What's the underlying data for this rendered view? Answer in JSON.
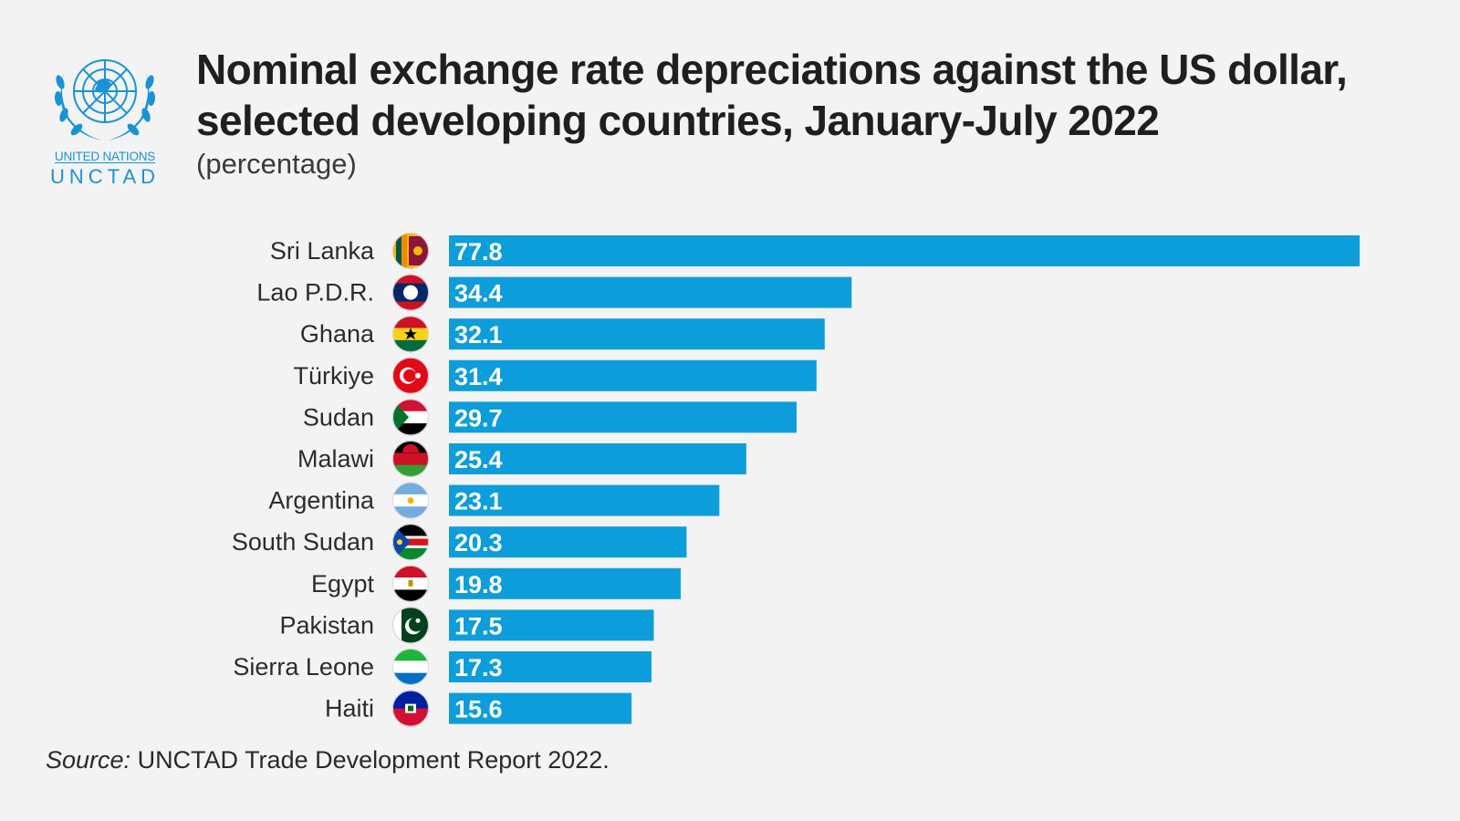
{
  "brand": {
    "org_line": "UNITED NATIONS",
    "name": "UNCTAD",
    "color": "#1a93d4"
  },
  "title_line1": "Nominal exchange rate depreciations against the US dollar,",
  "title_line2": "selected developing countries, January-July 2022",
  "subtitle": "(percentage)",
  "source_label": "Source:",
  "source_text": " UNCTAD Trade Development Report 2022.",
  "chart_data": {
    "type": "bar",
    "orientation": "horizontal",
    "categories": [
      "Sri Lanka",
      "Lao P.D.R.",
      "Ghana",
      "Türkiye",
      "Sudan",
      "Malawi",
      "Argentina",
      "South Sudan",
      "Egypt",
      "Pakistan",
      "Sierra Leone",
      "Haiti"
    ],
    "values": [
      77.8,
      34.4,
      32.1,
      31.4,
      29.7,
      25.4,
      23.1,
      20.3,
      19.8,
      17.5,
      17.3,
      15.6
    ],
    "value_labels": [
      "77.8",
      "34.4",
      "32.1",
      "31.4",
      "29.7",
      "25.4",
      "23.1",
      "20.3",
      "19.8",
      "17.5",
      "17.3",
      "15.6"
    ],
    "flags": [
      "flag-sri-lanka-icon",
      "flag-laos-icon",
      "flag-ghana-icon",
      "flag-turkiye-icon",
      "flag-sudan-icon",
      "flag-malawi-icon",
      "flag-argentina-icon",
      "flag-south-sudan-icon",
      "flag-egypt-icon",
      "flag-pakistan-icon",
      "flag-sierra-leone-icon",
      "flag-haiti-icon"
    ],
    "bar_color": "#0d9ddb",
    "xlim": [
      0,
      80
    ],
    "grid": false,
    "legend": "none",
    "title": "Nominal exchange rate depreciations against the US dollar, selected developing countries, January-July 2022",
    "xlabel": "",
    "ylabel": ""
  }
}
